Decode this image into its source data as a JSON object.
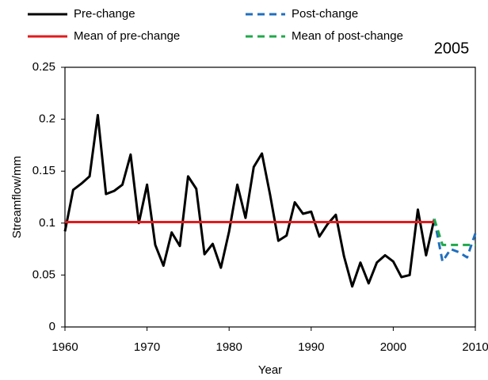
{
  "chart_data": {
    "type": "line",
    "annotation": "2005",
    "xlabel": "Year",
    "ylabel": "Streamflow/mm",
    "xlim": [
      1960,
      2010
    ],
    "xticks": [
      1960,
      1970,
      1980,
      1990,
      2000,
      2010
    ],
    "ylim": [
      0,
      0.25
    ],
    "yticks": [
      0,
      0.05,
      0.1,
      0.15,
      0.2,
      0.25
    ],
    "series": [
      {
        "name": "Pre-change",
        "color": "#000000",
        "dash": "solid",
        "x": [
          1960,
          1961,
          1962,
          1963,
          1964,
          1965,
          1966,
          1967,
          1968,
          1969,
          1970,
          1971,
          1972,
          1973,
          1974,
          1975,
          1976,
          1977,
          1978,
          1979,
          1980,
          1981,
          1982,
          1983,
          1984,
          1985,
          1986,
          1987,
          1988,
          1989,
          1990,
          1991,
          1992,
          1993,
          1994,
          1995,
          1996,
          1997,
          1998,
          1999,
          2000,
          2001,
          2002,
          2003,
          2004,
          2005
        ],
        "values": [
          0.092,
          0.132,
          0.138,
          0.145,
          0.204,
          0.128,
          0.131,
          0.137,
          0.166,
          0.1,
          0.137,
          0.079,
          0.059,
          0.091,
          0.078,
          0.145,
          0.133,
          0.07,
          0.08,
          0.057,
          0.092,
          0.137,
          0.105,
          0.154,
          0.167,
          0.127,
          0.083,
          0.088,
          0.12,
          0.109,
          0.111,
          0.087,
          0.099,
          0.108,
          0.068,
          0.039,
          0.062,
          0.042,
          0.062,
          0.069,
          0.063,
          0.048,
          0.05,
          0.113,
          0.069,
          0.104
        ]
      },
      {
        "name": "Post-change",
        "color": "#1f6fbf",
        "dash": "dashed",
        "x": [
          2005,
          2006,
          2007,
          2008,
          2009,
          2010
        ],
        "values": [
          0.104,
          0.063,
          0.075,
          0.072,
          0.067,
          0.09
        ]
      },
      {
        "name": "Mean of pre-change",
        "color": "#e31a1c",
        "dash": "solid",
        "x": [
          1960,
          2005
        ],
        "values": [
          0.101,
          0.101
        ]
      },
      {
        "name": "Mean of post-change",
        "color": "#1fa84a",
        "dash": "dashed",
        "x": [
          2005,
          2006,
          2010
        ],
        "values": [
          0.104,
          0.079,
          0.079
        ]
      }
    ]
  }
}
